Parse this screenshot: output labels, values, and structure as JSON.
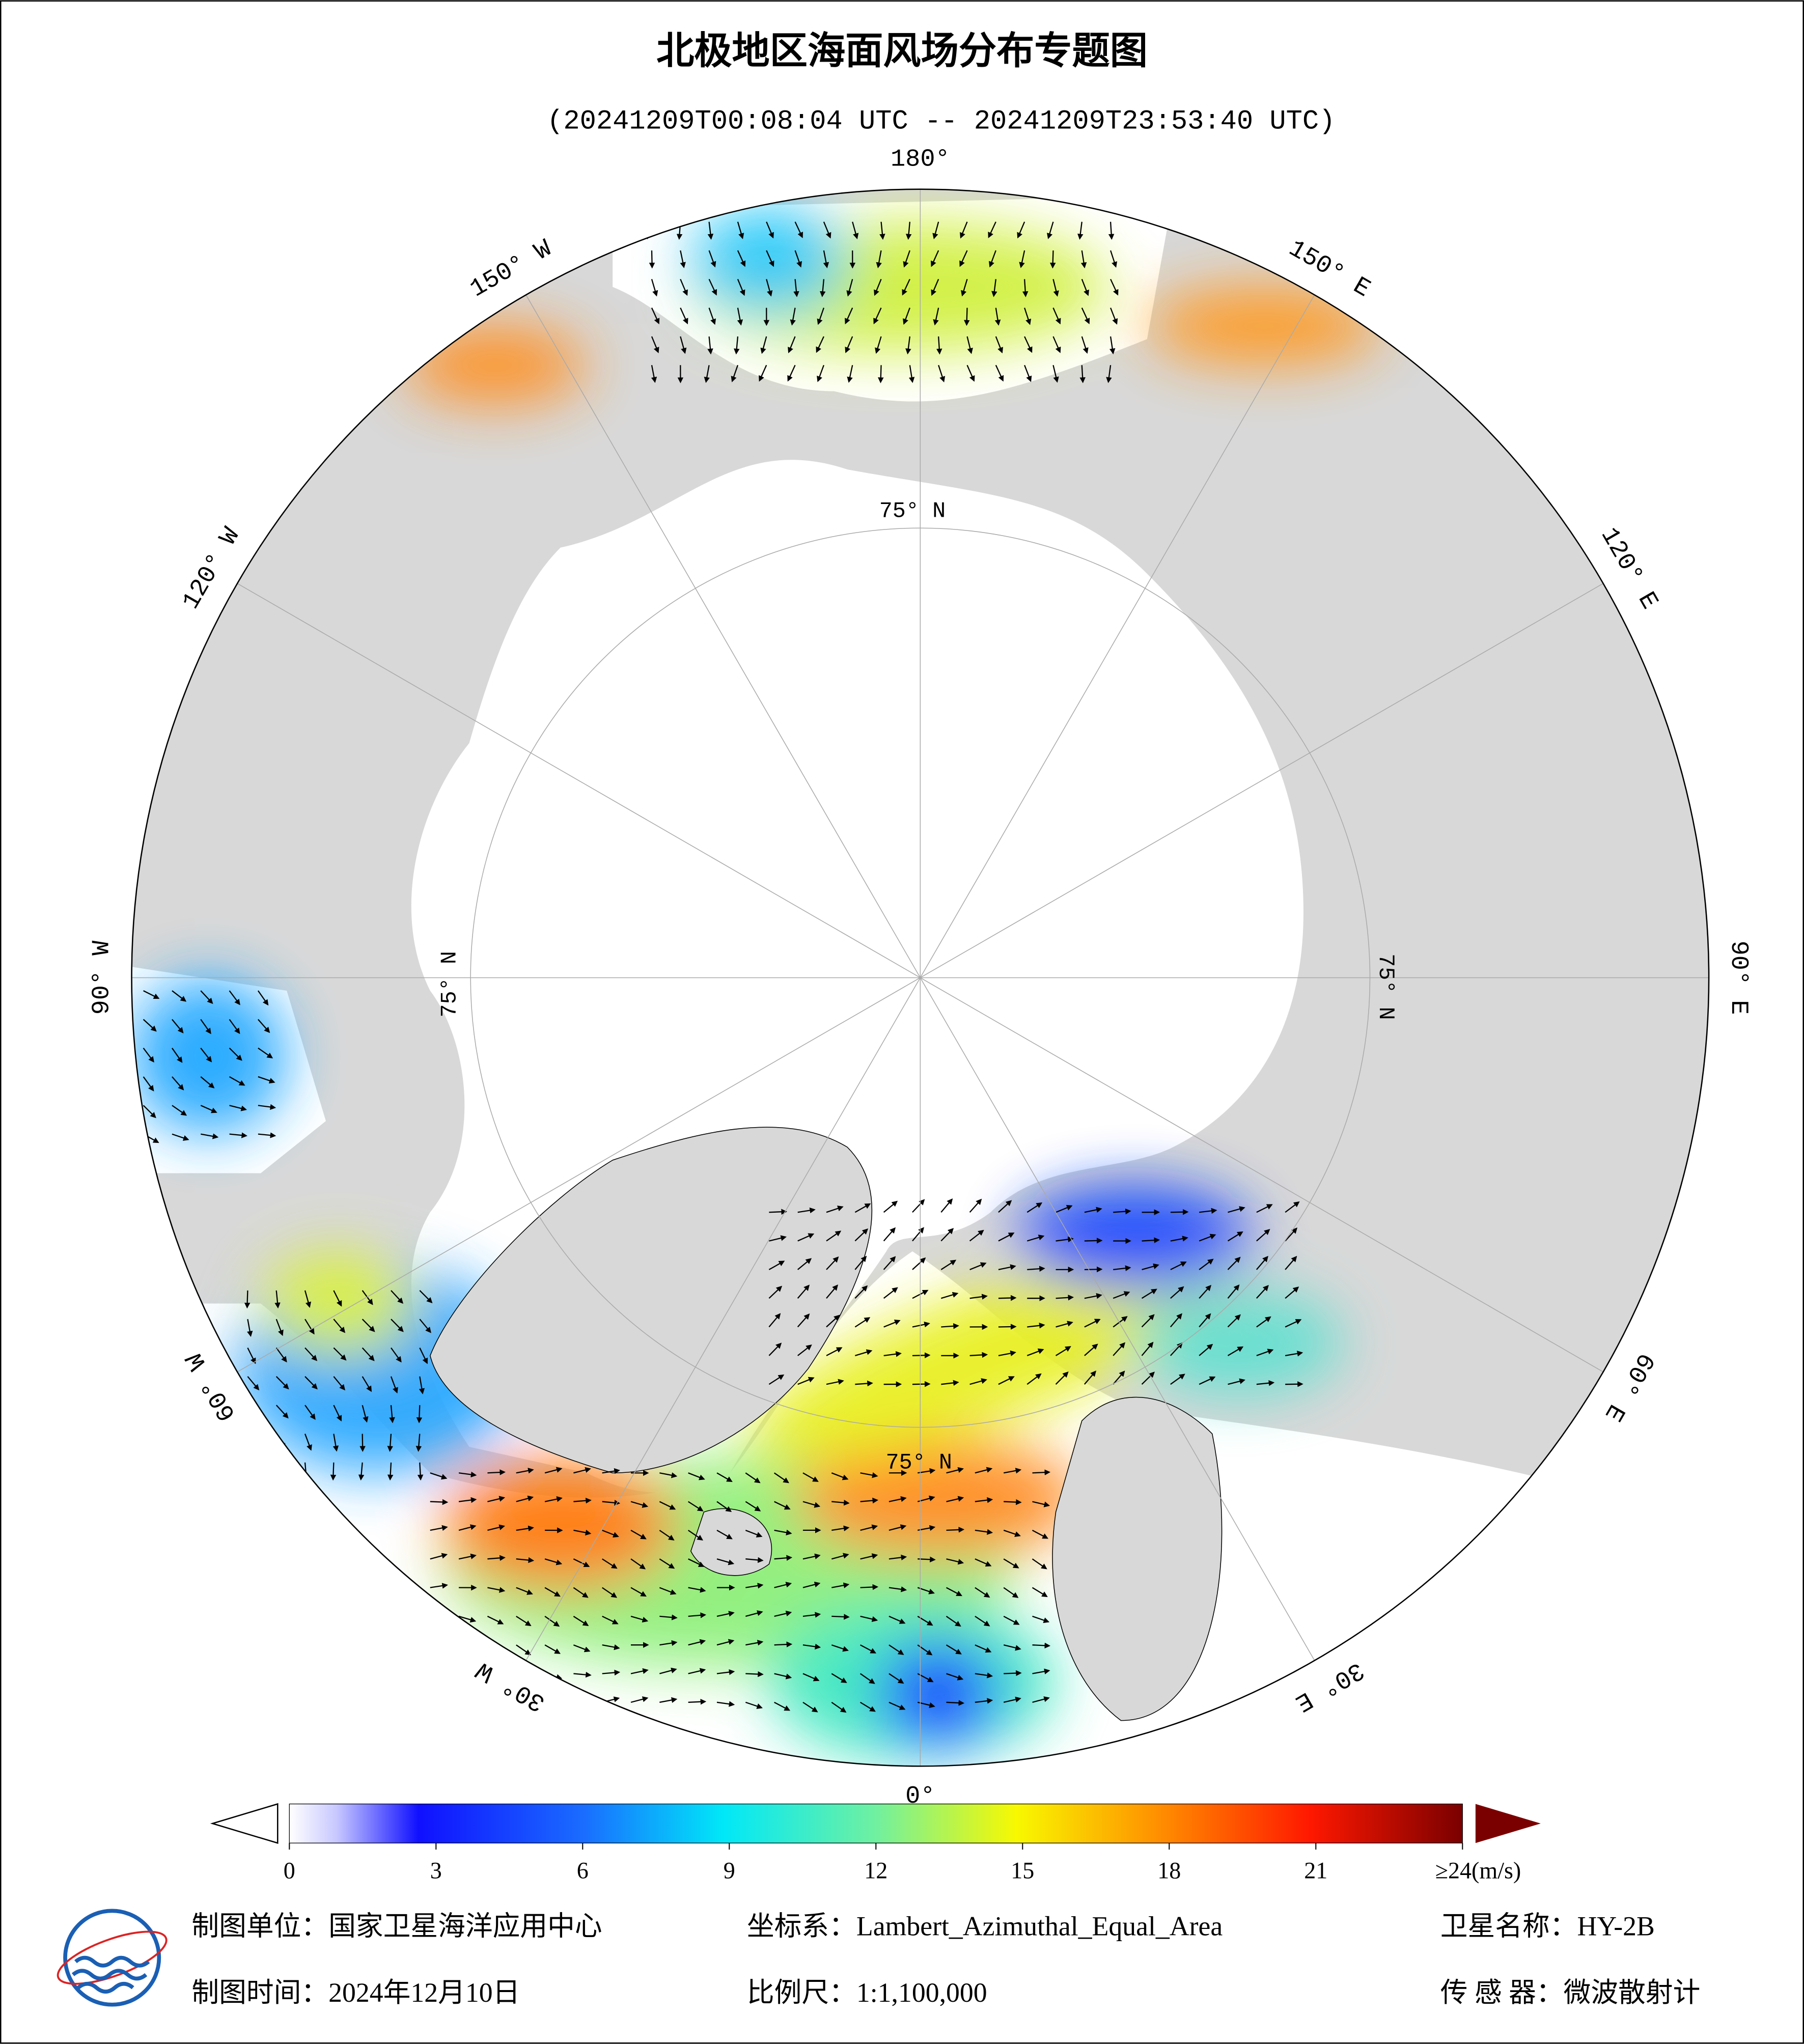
{
  "header": {
    "title": "北极地区海面风场分布专题图",
    "subtitle": "(20241209T00:08:04 UTC -- 20241209T23:53:40 UTC)"
  },
  "map": {
    "lon_labels": [
      "180°",
      "150° E",
      "120° E",
      "90° E",
      "60° E",
      "30° E",
      "0°",
      "30° W",
      "60° W",
      "90° W",
      "120° W",
      "150° W"
    ],
    "lat_label": "75° N"
  },
  "colorbar": {
    "xlim": [
      0,
      24
    ],
    "ticks": [
      0,
      3,
      6,
      9,
      12,
      15,
      18,
      21,
      {
        "value": 24,
        "label": "≥24(m/s)"
      }
    ]
  },
  "footer": {
    "producer": "制图单位：国家卫星海洋应用中心",
    "coordinate_system": "坐标系：Lambert_Azimuthal_Equal_Area",
    "satellite": "卫星名称：HY-2B",
    "date": "制图时间：2024年12月10日",
    "scale": "比例尺：1:1,100,000",
    "sensor": "传 感 器：微波散射计"
  }
}
